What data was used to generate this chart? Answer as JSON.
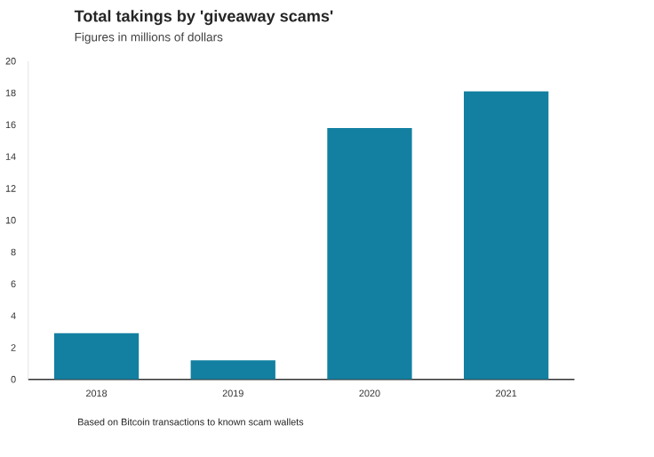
{
  "chart_data": {
    "type": "bar",
    "title": "Total takings by 'giveaway scams'",
    "subtitle": "Figures in millions of dollars",
    "categories": [
      "2018",
      "2019",
      "2020",
      "2021"
    ],
    "values": [
      2.9,
      1.2,
      15.8,
      18.1
    ],
    "color": "#1380a1",
    "ylim": [
      0,
      20
    ],
    "yticks": [
      0,
      2,
      4,
      6,
      8,
      10,
      12,
      14,
      16,
      18,
      20
    ],
    "grid": false,
    "annotations": [
      "Based on Bitcoin transactions to known scam wallets"
    ]
  }
}
